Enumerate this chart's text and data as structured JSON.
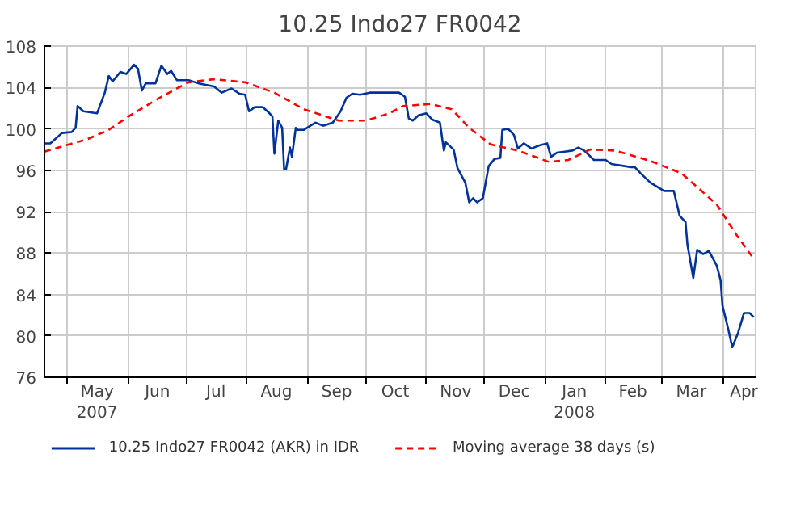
{
  "chart_data": {
    "type": "line",
    "title": "10.25 Indo27 FR0042",
    "xlim": [
      "2007-04-19",
      "2008-04-18"
    ],
    "ylim": [
      76,
      108
    ],
    "yticks": [
      76,
      80,
      84,
      88,
      92,
      96,
      100,
      104,
      108
    ],
    "xticks": [
      {
        "value": "2007-05-01",
        "label": null
      },
      {
        "value": "2007-06-01",
        "label": null
      },
      {
        "value": "2007-07-01",
        "label": null
      },
      {
        "value": "2007-08-01",
        "label": null
      },
      {
        "value": "2007-09-01",
        "label": null
      },
      {
        "value": "2007-10-01",
        "label": null
      },
      {
        "value": "2007-11-01",
        "label": null
      },
      {
        "value": "2007-12-01",
        "label": null
      },
      {
        "value": "2008-01-01",
        "label": null
      },
      {
        "value": "2008-02-01",
        "label": null
      },
      {
        "value": "2008-03-01",
        "label": null
      },
      {
        "value": "2008-04-01",
        "label": null
      },
      {
        "value": "2007-05-16",
        "label": "May\n2007"
      },
      {
        "value": "2007-06-16",
        "label": "Jun"
      },
      {
        "value": "2007-07-16",
        "label": "Jul"
      },
      {
        "value": "2007-08-16",
        "label": "Aug"
      },
      {
        "value": "2007-09-16",
        "label": "Sep"
      },
      {
        "value": "2007-10-16",
        "label": "Oct"
      },
      {
        "value": "2007-11-16",
        "label": "Nov"
      },
      {
        "value": "2007-12-16",
        "label": "Dec"
      },
      {
        "value": "2008-01-16",
        "label": "Jan\n2008"
      },
      {
        "value": "2008-02-15",
        "label": "Feb"
      },
      {
        "value": "2008-03-16",
        "label": "Mar"
      },
      {
        "value": "2008-04-12",
        "label": "Apr"
      }
    ],
    "grid": true,
    "legend": "bottom",
    "series": [
      {
        "name": "10.25 Indo27 FR0042 (AKR) in IDR",
        "color": "#003399",
        "line_style": "solid",
        "x": [
          "2007-04-19",
          "2007-04-22",
          "2007-04-28",
          "2007-05-03",
          "2007-05-05",
          "2007-05-06",
          "2007-05-09",
          "2007-05-16",
          "2007-05-20",
          "2007-05-22",
          "2007-05-24",
          "2007-05-28",
          "2007-05-31",
          "2007-06-04",
          "2007-06-06",
          "2007-06-08",
          "2007-06-10",
          "2007-06-15",
          "2007-06-18",
          "2007-06-21",
          "2007-06-23",
          "2007-06-26",
          "2007-07-02",
          "2007-07-07",
          "2007-07-15",
          "2007-07-19",
          "2007-07-24",
          "2007-07-28",
          "2007-07-31",
          "2007-08-02",
          "2007-08-05",
          "2007-08-09",
          "2007-08-12",
          "2007-08-14",
          "2007-08-15",
          "2007-08-17",
          "2007-08-19",
          "2007-08-20",
          "2007-08-21",
          "2007-08-23",
          "2007-08-24",
          "2007-08-26",
          "2007-08-27",
          "2007-08-30",
          "2007-09-05",
          "2007-09-09",
          "2007-09-14",
          "2007-09-18",
          "2007-09-21",
          "2007-09-24",
          "2007-09-28",
          "2007-10-03",
          "2007-10-06",
          "2007-10-18",
          "2007-10-21",
          "2007-10-23",
          "2007-10-25",
          "2007-10-28",
          "2007-11-01",
          "2007-11-04",
          "2007-11-08",
          "2007-11-10",
          "2007-11-11",
          "2007-11-15",
          "2007-11-17",
          "2007-11-21",
          "2007-11-23",
          "2007-11-25",
          "2007-11-27",
          "2007-11-30",
          "2007-12-03",
          "2007-12-06",
          "2007-12-09",
          "2007-12-10",
          "2007-12-13",
          "2007-12-16",
          "2007-12-18",
          "2007-12-21",
          "2007-12-25",
          "2007-12-29",
          "2008-01-02",
          "2008-01-04",
          "2008-01-07",
          "2008-01-11",
          "2008-01-15",
          "2008-01-18",
          "2008-01-21",
          "2008-01-26",
          "2008-02-01",
          "2008-02-04",
          "2008-02-14",
          "2008-02-16",
          "2008-02-19",
          "2008-02-24",
          "2008-03-02",
          "2008-03-07",
          "2008-03-10",
          "2008-03-13",
          "2008-03-14",
          "2008-03-17",
          "2008-03-19",
          "2008-03-22",
          "2008-03-25",
          "2008-03-29",
          "2008-03-31",
          "2008-04-01",
          "2008-04-04",
          "2008-04-06",
          "2008-04-09",
          "2008-04-12",
          "2008-04-15",
          "2008-04-17"
        ],
        "values": [
          98.6,
          98.6,
          99.6,
          99.7,
          100.1,
          102.2,
          101.7,
          101.5,
          103.5,
          105.1,
          104.6,
          105.5,
          105.3,
          106.2,
          105.8,
          103.7,
          104.4,
          104.4,
          106.1,
          105.3,
          105.6,
          104.7,
          104.7,
          104.4,
          104.1,
          103.5,
          103.9,
          103.4,
          103.3,
          101.7,
          102.1,
          102.1,
          101.6,
          101.2,
          97.6,
          100.8,
          100.1,
          96.1,
          96.1,
          98.2,
          97.3,
          100.1,
          99.9,
          99.9,
          100.6,
          100.3,
          100.6,
          101.7,
          103.0,
          103.4,
          103.3,
          103.5,
          103.5,
          103.5,
          103.1,
          101.0,
          100.8,
          101.3,
          101.5,
          100.9,
          100.6,
          97.9,
          98.7,
          98.0,
          96.2,
          94.8,
          92.9,
          93.3,
          92.9,
          93.3,
          96.4,
          97.1,
          97.2,
          99.9,
          100.0,
          99.4,
          98.1,
          98.6,
          98.1,
          98.4,
          98.6,
          97.3,
          97.7,
          97.8,
          97.9,
          98.2,
          97.9,
          97.0,
          97.0,
          96.6,
          96.3,
          96.3,
          95.7,
          94.8,
          94.0,
          94.0,
          91.6,
          91.0,
          88.8,
          85.6,
          88.3,
          87.9,
          88.2,
          86.8,
          85.4,
          82.9,
          80.6,
          78.9,
          80.3,
          82.2,
          82.2,
          81.8
        ]
      },
      {
        "name": "Moving average 38 days (s)",
        "color": "#ff0000",
        "line_style": "dashed",
        "x": [
          "2007-04-19",
          "2007-04-28",
          "2007-05-11",
          "2007-05-22",
          "2007-06-02",
          "2007-06-18",
          "2007-07-02",
          "2007-07-15",
          "2007-07-31",
          "2007-08-15",
          "2007-08-30",
          "2007-09-17",
          "2007-10-01",
          "2007-10-13",
          "2007-10-20",
          "2007-11-03",
          "2007-11-14",
          "2007-11-23",
          "2007-12-04",
          "2007-12-18",
          "2008-01-03",
          "2008-01-13",
          "2008-01-24",
          "2008-02-06",
          "2008-02-24",
          "2008-03-11",
          "2008-03-29",
          "2008-04-08",
          "2008-04-16"
        ],
        "values": [
          97.8,
          98.3,
          99.0,
          99.9,
          101.3,
          103.1,
          104.5,
          104.8,
          104.5,
          103.5,
          101.9,
          100.8,
          100.8,
          101.5,
          102.2,
          102.4,
          101.9,
          100.1,
          98.5,
          97.9,
          96.8,
          97.0,
          98.0,
          97.9,
          96.9,
          95.7,
          92.7,
          89.8,
          87.7
        ]
      }
    ]
  }
}
